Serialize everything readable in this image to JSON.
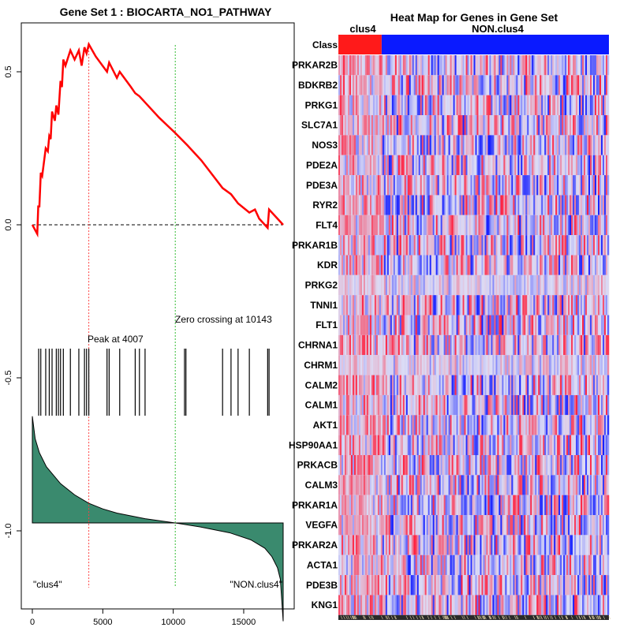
{
  "chart_data": [
    {
      "type": "line",
      "title": "Gene Set  1 : BIOCARTA_NO1_PATHWAY",
      "xlim": [
        0,
        17800
      ],
      "ylim": [
        -1.15,
        0.65
      ],
      "x_ticks": [
        0,
        5000,
        10000,
        15000
      ],
      "x_tick_labels": [
        "0",
        "5000",
        "10000",
        "15000"
      ],
      "y_ticks": [
        0.5,
        0.0,
        -0.5,
        -1.0
      ],
      "y_tick_labels": [
        "0.5",
        "0.0",
        "-0.5",
        "-1.0"
      ],
      "peak_x": 4007,
      "peak_label": "Peak at 4007",
      "zero_crossing_x": 10143,
      "zero_crossing_label": "Zero crossing at 10143",
      "left_label": "\"clus4\"",
      "right_label": "\"NON.clus4\"",
      "enrichment_line": {
        "color": "#ff0000",
        "points": [
          [
            0,
            0.0
          ],
          [
            350,
            -0.03
          ],
          [
            420,
            0.06
          ],
          [
            500,
            0.06
          ],
          [
            600,
            0.17
          ],
          [
            700,
            0.16
          ],
          [
            950,
            0.25
          ],
          [
            1100,
            0.24
          ],
          [
            1200,
            0.29
          ],
          [
            1300,
            0.28
          ],
          [
            1400,
            0.37
          ],
          [
            1600,
            0.34
          ],
          [
            1700,
            0.39
          ],
          [
            1850,
            0.36
          ],
          [
            2000,
            0.47
          ],
          [
            2100,
            0.45
          ],
          [
            2200,
            0.54
          ],
          [
            2350,
            0.52
          ],
          [
            2700,
            0.57
          ],
          [
            3000,
            0.54
          ],
          [
            3300,
            0.57
          ],
          [
            3500,
            0.52
          ],
          [
            3700,
            0.58
          ],
          [
            3850,
            0.56
          ],
          [
            4007,
            0.59
          ],
          [
            4500,
            0.55
          ],
          [
            5300,
            0.5
          ],
          [
            5450,
            0.53
          ],
          [
            6000,
            0.48
          ],
          [
            6200,
            0.5
          ],
          [
            7000,
            0.45
          ],
          [
            7300,
            0.43
          ],
          [
            7600,
            0.42
          ],
          [
            8000,
            0.4
          ],
          [
            9000,
            0.35
          ],
          [
            10143,
            0.3
          ],
          [
            11000,
            0.26
          ],
          [
            12000,
            0.21
          ],
          [
            13500,
            0.12
          ],
          [
            14100,
            0.1
          ],
          [
            14600,
            0.07
          ],
          [
            15400,
            0.04
          ],
          [
            15800,
            0.05
          ],
          [
            16100,
            0.02
          ],
          [
            16700,
            -0.01
          ],
          [
            16800,
            0.05
          ],
          [
            17800,
            0.0
          ]
        ]
      },
      "hit_positions": [
        450,
        600,
        950,
        1200,
        1400,
        1700,
        1850,
        2000,
        2200,
        2700,
        3300,
        3700,
        3850,
        4007,
        5300,
        5450,
        6200,
        7300,
        7600,
        8000,
        10800,
        10900,
        13500,
        14100,
        14600,
        15400,
        16700,
        16800
      ],
      "ranked_metric": {
        "color": "#3a8a6e",
        "x": [
          0,
          200,
          500,
          1000,
          2000,
          3000,
          4007,
          5000,
          6000,
          8000,
          10143,
          12000,
          14000,
          15500,
          16500,
          17000,
          17400,
          17600,
          17800
        ],
        "y": [
          0.38,
          0.3,
          0.25,
          0.2,
          0.14,
          0.1,
          0.07,
          0.05,
          0.035,
          0.015,
          0.0,
          -0.015,
          -0.035,
          -0.06,
          -0.09,
          -0.12,
          -0.16,
          -0.2,
          -0.35
        ]
      }
    },
    {
      "type": "heatmap",
      "title": "Heat Map for Genes in Gene Set",
      "class_label": "Class",
      "groups": [
        {
          "name": "clus4",
          "color": "#ff1a1a",
          "fraction": 0.16
        },
        {
          "name": "NON.clus4",
          "color": "#0a1aff",
          "fraction": 0.84
        }
      ],
      "genes": [
        "PRKAR2B",
        "BDKRB2",
        "PRKG1",
        "SLC7A1",
        "NOS3",
        "PDE2A",
        "PDE3A",
        "RYR2",
        "FLT4",
        "PRKAR1B",
        "KDR",
        "PRKG2",
        "TNNI1",
        "FLT1",
        "CHRNA1",
        "CHRM1",
        "CALM2",
        "CALM1",
        "AKT1",
        "HSP90AA1",
        "PRKACB",
        "CALM3",
        "PRKAR1A",
        "VEGFA",
        "PRKAR2A",
        "ACTA1",
        "PDE3B",
        "KNG1"
      ],
      "high_color": "#ff0000",
      "low_color": "#0000ff",
      "mid_color": "#dcdcf5"
    }
  ]
}
